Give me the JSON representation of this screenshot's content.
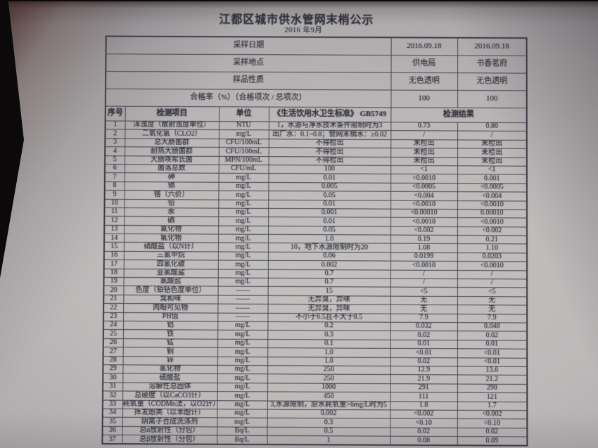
{
  "document": {
    "title": "江都区城市供水管网末梢公示",
    "date": "2016 年9月"
  },
  "info_rows": [
    {
      "label": "采样日期",
      "values": [
        "2016.09.18",
        "2016.09.18"
      ]
    },
    {
      "label": "采样地点",
      "values": [
        "供电局",
        "书香茗府"
      ]
    },
    {
      "label": "样品性质",
      "values": [
        "无色透明",
        "无色透明"
      ]
    },
    {
      "label": "合格率（%）（合格项次 / 总项次）",
      "values": [
        "100",
        "100"
      ]
    }
  ],
  "columns": {
    "index": "序号",
    "item": "检测项目",
    "unit": "单位",
    "standard": "《生活饮用水卫生标准》 GB5749",
    "result": "检测结果"
  },
  "rows": [
    [
      "1",
      "浑浊度（散射浊度单位）",
      "NTU",
      "1，水源与净水技术条件限制时为3",
      "0.73",
      "0.80"
    ],
    [
      "2",
      "二氧化氯（CLO2）",
      "mg/L",
      "出厂水：0.1~0.8；管网末梢水：≥0.02",
      "/",
      "/"
    ],
    [
      "3",
      "总大肠菌群",
      "CFU/100mL",
      "不得检出",
      "未检出",
      "未检出"
    ],
    [
      "4",
      "耐热大肠菌群",
      "CFU/100mL",
      "不得检出",
      "未检出",
      "未检出"
    ],
    [
      "5",
      "大肠埃希氏菌",
      "MPN/100mL",
      "不得检出",
      "未检出",
      "未检出"
    ],
    [
      "6",
      "菌落总数",
      "CFU/mL",
      "100",
      "<1",
      "<1"
    ],
    [
      "7",
      "砷",
      "mg/L",
      "0.01",
      "<0.0010",
      "0.001"
    ],
    [
      "8",
      "镉",
      "mg/L",
      "0.005",
      "<0.0005",
      "<0.0005"
    ],
    [
      "9",
      "铬（六价）",
      "mg/L",
      "0.05",
      "<0.004",
      "<0.004"
    ],
    [
      "10",
      "铅",
      "mg/L",
      "0.01",
      "<0.0010",
      "<0.0010"
    ],
    [
      "11",
      "汞",
      "mg/L",
      "0.001",
      "<0.00010",
      "0.00010"
    ],
    [
      "12",
      "硒",
      "mg/L",
      "0.01",
      "<0.0010",
      "<0.0010"
    ],
    [
      "13",
      "氰化物",
      "mg/L",
      "0.05",
      "<0.002",
      "<0.002"
    ],
    [
      "14",
      "氟化物",
      "mg/L",
      "1.0",
      "0.19",
      "0.21"
    ],
    [
      "15",
      "硝酸盐（以N计）",
      "mg/L",
      "10，地下水源限制时为20",
      "1.08",
      "1.10"
    ],
    [
      "16",
      "三氯甲烷",
      "mg/L",
      "0.06",
      "0.0199",
      "0.0203"
    ],
    [
      "17",
      "四氯化碳",
      "mg/L",
      "0.002",
      "<0.0010",
      "<0.0010"
    ],
    [
      "18",
      "亚氯酸盐",
      "mg/L",
      "0.7",
      "/",
      "/"
    ],
    [
      "19",
      "氯酸盐",
      "mg/L",
      "0.7",
      "/",
      "/"
    ],
    [
      "20",
      "色度（铂钴色度单位）",
      "——",
      "15",
      "<5",
      "<5"
    ],
    [
      "21",
      "臭和味",
      "——",
      "无异臭，异味",
      "无",
      "无"
    ],
    [
      "22",
      "肉眼可见物",
      "——",
      "无异臭，异味",
      "无",
      "无"
    ],
    [
      "23",
      "PH值",
      "——",
      "不小于6.5且不大于8.5",
      "7.9",
      "7.9"
    ],
    [
      "24",
      "铝",
      "mg/L",
      "0.2",
      "0.032",
      "0.048"
    ],
    [
      "25",
      "铁",
      "mg/L",
      "0.3",
      "0.02",
      "0.02"
    ],
    [
      "26",
      "锰",
      "mg/L",
      "0.1",
      "0.01",
      "0.01"
    ],
    [
      "27",
      "铜",
      "mg/L",
      "1.0",
      "<0.01",
      "<0.01"
    ],
    [
      "28",
      "锌",
      "mg/L",
      "1.0",
      "0.02",
      "<0.01"
    ],
    [
      "29",
      "氯化物",
      "mg/L",
      "250",
      "12.9",
      "13.6"
    ],
    [
      "30",
      "硫酸盐",
      "mg/L",
      "250",
      "21.9",
      "21.2"
    ],
    [
      "31",
      "溶解性总固体",
      "mg/L",
      "1000",
      "291",
      "290"
    ],
    [
      "32",
      "总硬度（以CaCO3计）",
      "mg/L",
      "450",
      "111",
      "121"
    ],
    [
      "33",
      "耗氧量（CODMn法，以O2计）",
      "mg/L",
      "3,水源限制，原水耗氧量>6mg/L时为5",
      "1.8",
      "1.7"
    ],
    [
      "34",
      "挥发酚类（以苯酚计）",
      "mg/L",
      "0.002",
      "<0.002",
      "<0.002"
    ],
    [
      "35",
      "阴离子合成洗涤剂",
      "mg/L",
      "0.3",
      "<0.10",
      "<0.10"
    ],
    [
      "36",
      "总α放射性（分包）",
      "Bq/L",
      "0.5",
      "0.02",
      "0.02"
    ],
    [
      "37",
      "总β放射性（分包）",
      "Bq/L",
      "1",
      "0.08",
      "0.09"
    ]
  ],
  "colors": {
    "paper": "#c3c1c0",
    "ink": "#2e2d36",
    "table_line": "#45434e",
    "table_line_heavy": "#3a3844",
    "backdrop": "#0b090a"
  }
}
